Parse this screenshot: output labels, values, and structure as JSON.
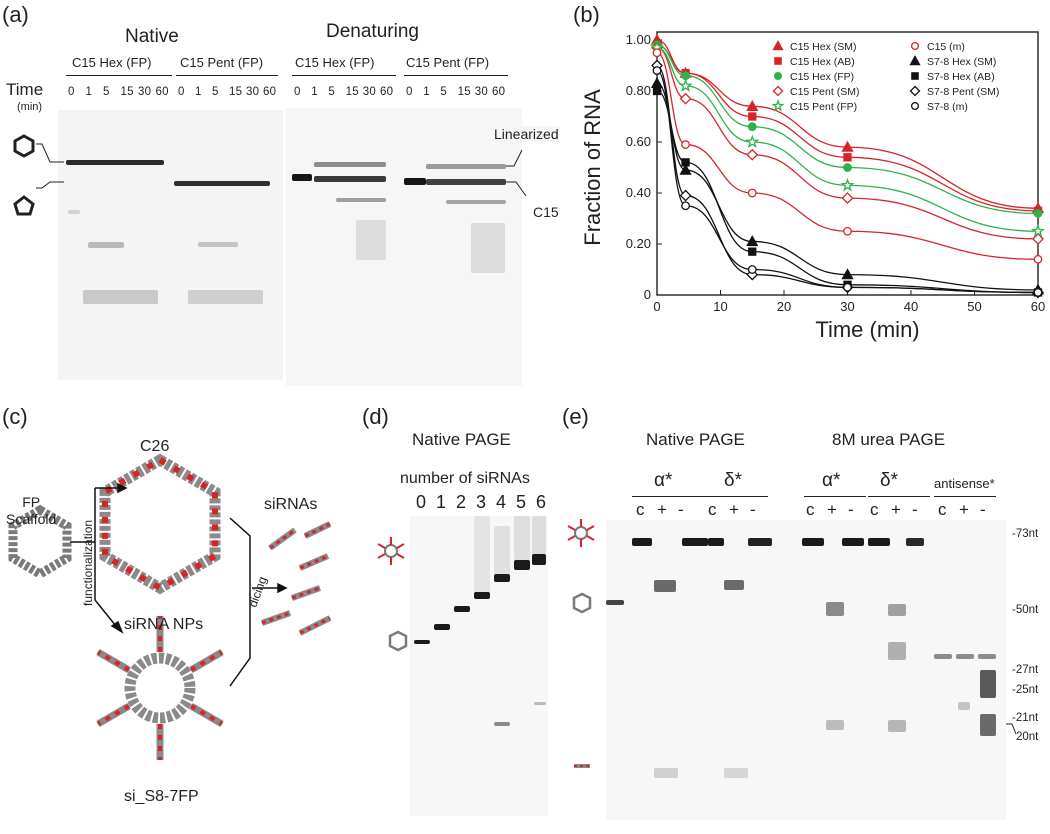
{
  "panel_a": {
    "label": "(a)",
    "native_title": "Native",
    "denaturing_title": "Denaturing",
    "time_label": "Time",
    "time_unit": "(min)",
    "groups": [
      "C15 Hex (FP)",
      "C15 Pent (FP)",
      "C15 Hex (FP)",
      "C15 Pent (FP)"
    ],
    "timepoints": [
      "0",
      "1",
      "5",
      "15",
      "30",
      "60"
    ],
    "linearized": "Linearized",
    "c15": "C15"
  },
  "panel_b": {
    "label": "(b)",
    "legend": [
      "C15 Hex (SM)",
      "C15 Hex (AB)",
      "C15 Hex (FP)",
      "C15 Pent (SM)",
      "C15 Pent (FP)",
      "C15 (m)",
      "S7-8 Hex (SM)",
      "S7-8 Hex (AB)",
      "S7-8 Pent (SM)",
      "S7-8 (m)"
    ]
  },
  "chart_data": {
    "type": "line",
    "xlabel": "Time (min)",
    "ylabel": "Fraction of RNA",
    "xlim": [
      0,
      60
    ],
    "ylim": [
      0,
      1
    ],
    "x_ticks": [
      "0",
      "10",
      "20",
      "30",
      "40",
      "50",
      "60"
    ],
    "y_ticks": [
      "0",
      "0.20",
      "0.40",
      "0.60",
      "0.80",
      "1.00"
    ],
    "x": [
      0,
      4.5,
      15,
      30,
      60
    ],
    "series": [
      {
        "name": "C15 Hex (SM)",
        "color": "#d7242b",
        "marker": "triangle",
        "fill": true,
        "values": [
          1.0,
          0.87,
          0.74,
          0.58,
          0.34
        ]
      },
      {
        "name": "C15 Hex (AB)",
        "color": "#d7242b",
        "marker": "square",
        "fill": true,
        "values": [
          0.98,
          0.87,
          0.7,
          0.54,
          0.33
        ]
      },
      {
        "name": "C15 Hex (FP)",
        "color": "#2db34a",
        "marker": "circle",
        "fill": true,
        "values": [
          0.98,
          0.86,
          0.66,
          0.5,
          0.32
        ]
      },
      {
        "name": "C15 Pent (SM)",
        "color": "#d7242b",
        "marker": "diamond",
        "fill": false,
        "values": [
          0.97,
          0.77,
          0.55,
          0.38,
          0.22
        ]
      },
      {
        "name": "C15 Pent (FP)",
        "color": "#2db34a",
        "marker": "star",
        "fill": false,
        "values": [
          0.97,
          0.82,
          0.6,
          0.43,
          0.25
        ]
      },
      {
        "name": "C15 (m)",
        "color": "#d7242b",
        "marker": "circle",
        "fill": false,
        "values": [
          0.95,
          0.59,
          0.4,
          0.25,
          0.14
        ]
      },
      {
        "name": "S7-8 Hex (SM)",
        "color": "#111111",
        "marker": "triangle",
        "fill": true,
        "values": [
          0.83,
          0.49,
          0.21,
          0.08,
          0.02
        ]
      },
      {
        "name": "S7-8 Hex (AB)",
        "color": "#111111",
        "marker": "square",
        "fill": true,
        "values": [
          0.8,
          0.52,
          0.17,
          0.04,
          0.01
        ]
      },
      {
        "name": "S7-8 Pent (SM)",
        "color": "#111111",
        "marker": "diamond",
        "fill": false,
        "values": [
          0.9,
          0.39,
          0.08,
          0.03,
          0.01
        ]
      },
      {
        "name": "S7-8 (m)",
        "color": "#111111",
        "marker": "circle",
        "fill": false,
        "values": [
          0.88,
          0.35,
          0.1,
          0.03,
          0.01
        ]
      }
    ]
  },
  "panel_c": {
    "label": "(c)",
    "fp_scaffold": "FP\nScaffold",
    "c26": "C26",
    "sirna_nps": "siRNA NPs",
    "functionalization": "functionalization",
    "dicing": "dicing",
    "sirnas": "siRNAs",
    "si_s8": "si_S8-7FP"
  },
  "panel_d": {
    "label": "(d)",
    "title": "Native PAGE",
    "subtitle": "number of siRNAs",
    "lanes": [
      "0",
      "1",
      "2",
      "3",
      "4",
      "5",
      "6"
    ]
  },
  "panel_e": {
    "label": "(e)",
    "native_title": "Native PAGE",
    "urea_title": "8M urea PAGE",
    "groups": [
      "α*",
      "δ*",
      "α*",
      "δ*",
      "antisense*"
    ],
    "lane_marks": [
      "c",
      "+",
      "-"
    ],
    "markers": [
      "-73nt",
      "-50nt",
      "-27nt",
      "-25nt",
      "-21nt",
      "20nt"
    ]
  },
  "colors": {
    "red": "#d7242b",
    "green": "#2db34a",
    "black": "#231f20"
  }
}
